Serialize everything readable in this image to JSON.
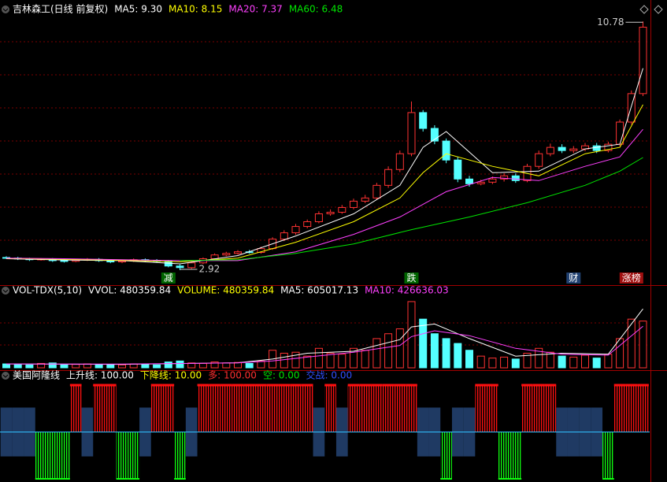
{
  "chart_data": [
    {
      "type": "candlestick",
      "title": "吉林森工(日线 前复权)",
      "legend": [
        {
          "label": "MA5: 9.30",
          "color": "#ffffff"
        },
        {
          "label": "MA10: 8.15",
          "color": "#ffff00"
        },
        {
          "label": "MA20: 7.37",
          "color": "#ff40ff"
        },
        {
          "label": "MA60: 6.48",
          "color": "#00e600"
        }
      ],
      "open": [
        3.32,
        3.3,
        3.28,
        3.25,
        3.27,
        3.22,
        3.2,
        3.24,
        3.26,
        3.22,
        3.18,
        3.21,
        3.25,
        3.23,
        3.2,
        3.05,
        3.0,
        3.15,
        3.28,
        3.4,
        3.45,
        3.5,
        3.48,
        3.6,
        3.9,
        4.1,
        4.3,
        4.45,
        4.7,
        4.75,
        4.9,
        5.1,
        5.2,
        5.6,
        6.1,
        6.6,
        7.9,
        7.4,
        7.0,
        6.4,
        5.8,
        5.65,
        5.7,
        5.8,
        5.9,
        5.75,
        6.2,
        6.6,
        6.8,
        6.7,
        6.75,
        6.85,
        6.7,
        6.9,
        7.6,
        8.5
      ],
      "high": [
        3.36,
        3.34,
        3.31,
        3.3,
        3.3,
        3.26,
        3.28,
        3.3,
        3.3,
        3.26,
        3.25,
        3.29,
        3.29,
        3.27,
        3.24,
        3.1,
        3.19,
        3.32,
        3.45,
        3.5,
        3.55,
        3.56,
        3.66,
        3.96,
        4.18,
        4.38,
        4.52,
        4.78,
        4.84,
        4.98,
        5.18,
        5.3,
        5.68,
        6.2,
        6.7,
        8.25,
        7.98,
        7.5,
        7.08,
        6.5,
        5.9,
        5.78,
        5.88,
        5.98,
        5.98,
        6.28,
        6.7,
        6.92,
        6.9,
        6.84,
        6.94,
        6.94,
        6.98,
        7.68,
        8.6,
        10.78
      ],
      "low": [
        3.27,
        3.24,
        3.21,
        3.22,
        3.18,
        3.16,
        3.17,
        3.21,
        3.18,
        3.14,
        3.14,
        3.18,
        3.19,
        3.16,
        3.01,
        2.92,
        2.96,
        3.11,
        3.24,
        3.36,
        3.41,
        3.44,
        3.44,
        3.56,
        3.84,
        4.04,
        4.24,
        4.4,
        4.64,
        4.7,
        4.84,
        5.04,
        5.14,
        5.52,
        6.02,
        6.52,
        7.3,
        6.9,
        6.3,
        5.7,
        5.56,
        5.6,
        5.64,
        5.72,
        5.68,
        5.7,
        6.12,
        6.52,
        6.62,
        6.62,
        6.68,
        6.62,
        6.64,
        6.84,
        7.52,
        8.42
      ],
      "close": [
        3.3,
        3.28,
        3.25,
        3.27,
        3.22,
        3.2,
        3.24,
        3.26,
        3.22,
        3.18,
        3.21,
        3.25,
        3.23,
        3.2,
        3.05,
        3.0,
        3.15,
        3.28,
        3.4,
        3.45,
        3.5,
        3.48,
        3.6,
        3.9,
        4.1,
        4.3,
        4.45,
        4.7,
        4.75,
        4.9,
        5.1,
        5.2,
        5.6,
        6.1,
        6.6,
        7.9,
        7.4,
        7.0,
        6.4,
        5.8,
        5.65,
        5.7,
        5.8,
        5.9,
        5.75,
        6.2,
        6.6,
        6.8,
        6.7,
        6.75,
        6.85,
        6.7,
        6.9,
        7.6,
        8.5,
        10.6
      ],
      "up_color": "#ff3232",
      "down_color": "#54ffff",
      "ylim": [
        2.87,
        11.11
      ],
      "lines": [
        {
          "color": "#ffffff",
          "x": [
            0,
            5,
            10,
            15,
            20,
            25,
            30,
            34,
            36,
            38,
            42,
            46,
            50,
            53,
            55
          ],
          "values": [
            3.28,
            3.24,
            3.22,
            3.12,
            3.38,
            4.0,
            4.7,
            5.6,
            6.8,
            7.3,
            6.0,
            6.05,
            6.75,
            6.9,
            9.3
          ]
        },
        {
          "color": "#ffff00",
          "x": [
            0,
            5,
            10,
            15,
            20,
            25,
            30,
            34,
            36,
            38,
            42,
            46,
            50,
            53,
            55
          ],
          "values": [
            3.29,
            3.26,
            3.23,
            3.18,
            3.3,
            3.8,
            4.45,
            5.2,
            6.0,
            6.6,
            6.2,
            5.9,
            6.6,
            6.8,
            8.15
          ]
        },
        {
          "color": "#ff40ff",
          "x": [
            0,
            5,
            10,
            15,
            20,
            25,
            30,
            34,
            36,
            38,
            42,
            46,
            50,
            53,
            55
          ],
          "values": [
            3.3,
            3.28,
            3.25,
            3.22,
            3.22,
            3.5,
            4.05,
            4.6,
            5.0,
            5.4,
            5.85,
            5.75,
            6.2,
            6.5,
            7.37
          ]
        },
        {
          "color": "#00e600",
          "x": [
            15,
            20,
            25,
            30,
            35,
            40,
            45,
            50,
            53,
            55
          ],
          "values": [
            3.22,
            3.25,
            3.45,
            3.75,
            4.2,
            4.6,
            5.05,
            5.6,
            6.05,
            6.48
          ]
        }
      ],
      "extreme_labels": [
        {
          "x": 55,
          "label": "10.78"
        },
        {
          "x": 15,
          "label": "2.92"
        }
      ],
      "markers": [
        {
          "x": 14,
          "label": "减",
          "color": "#ffffff",
          "background": "#006400"
        },
        {
          "x": 35,
          "label": "跌",
          "color": "#ffffff",
          "background": "#006400"
        },
        {
          "x": 49,
          "label": "财",
          "color": "#ffffff",
          "background": "#204070"
        },
        {
          "x": 54,
          "label": "涨榜",
          "color": "#ffffff",
          "background": "#a01010"
        }
      ]
    },
    {
      "type": "volume",
      "title": "VOL-TDX(5,10)",
      "legend": [
        {
          "label": "VVOL: 480359.84",
          "color": "#ffffff"
        },
        {
          "label": "VOLUME: 480359.84",
          "color": "#ffff00"
        },
        {
          "label": "MA5: 605017.13",
          "color": "#ffffff"
        },
        {
          "label": "MA10: 426636.03",
          "color": "#ff40ff"
        }
      ],
      "values": [
        40000,
        35000,
        30000,
        45000,
        50000,
        30000,
        35000,
        40000,
        30000,
        35000,
        30000,
        40000,
        35000,
        30000,
        60000,
        70000,
        50000,
        45000,
        60000,
        50000,
        55000,
        45000,
        70000,
        180000,
        150000,
        160000,
        120000,
        200000,
        150000,
        140000,
        200000,
        180000,
        300000,
        350000,
        400000,
        680000,
        500000,
        350000,
        300000,
        250000,
        180000,
        120000,
        100000,
        110000,
        90000,
        150000,
        200000,
        160000,
        120000,
        110000,
        130000,
        100000,
        140000,
        300000,
        500000,
        480359.84
      ],
      "ylim": [
        0,
        720000
      ],
      "lines": [
        {
          "color": "#ffffff",
          "x": [
            0,
            10,
            20,
            23,
            26,
            30,
            34,
            35,
            37,
            40,
            44,
            48,
            52,
            55
          ],
          "values": [
            40000,
            36000,
            52000,
            90000,
            150000,
            170000,
            290000,
            420000,
            450000,
            300000,
            120000,
            150000,
            140000,
            605017.13
          ]
        },
        {
          "color": "#ff40ff",
          "x": [
            0,
            10,
            20,
            23,
            26,
            30,
            34,
            35,
            37,
            40,
            44,
            48,
            52,
            55
          ],
          "values": [
            40000,
            38000,
            50000,
            70000,
            110000,
            160000,
            230000,
            320000,
            380000,
            330000,
            200000,
            140000,
            130000,
            426636.03
          ]
        }
      ]
    },
    {
      "type": "indicator",
      "title": "美国阿隆线",
      "legend": [
        {
          "label": "上升线: 100.00",
          "color": "#ffffff"
        },
        {
          "label": "下降线: 10.00",
          "color": "#ffff00"
        },
        {
          "label": "多: 100.00",
          "color": "#ff3030"
        },
        {
          "label": "空: 0.00",
          "color": "#00e600"
        },
        {
          "label": "交战: 0.00",
          "color": "#3050ff"
        }
      ],
      "ylim": [
        -100,
        100
      ],
      "series": [
        {
          "color": "#ff1010",
          "direction": "up",
          "values": [
            0,
            0,
            0,
            0,
            0,
            0,
            100,
            0,
            100,
            100,
            0,
            0,
            0,
            100,
            100,
            0,
            0,
            100,
            100,
            100,
            100,
            100,
            100,
            100,
            100,
            100,
            100,
            0,
            100,
            0,
            100,
            100,
            100,
            100,
            100,
            100,
            0,
            0,
            0,
            0,
            0,
            100,
            100,
            0,
            0,
            100,
            100,
            100,
            0,
            0,
            0,
            0,
            0,
            100,
            100,
            100
          ]
        },
        {
          "color": "#10ff10",
          "direction": "down",
          "values": [
            0,
            0,
            0,
            100,
            100,
            100,
            0,
            0,
            0,
            0,
            100,
            100,
            0,
            0,
            0,
            100,
            0,
            0,
            0,
            0,
            0,
            0,
            0,
            0,
            0,
            0,
            0,
            0,
            0,
            0,
            0,
            0,
            0,
            0,
            0,
            0,
            0,
            0,
            100,
            0,
            0,
            0,
            0,
            100,
            100,
            0,
            0,
            0,
            0,
            0,
            0,
            0,
            100,
            0,
            0,
            0
          ]
        },
        {
          "color": "#1f3a63",
          "direction": "band",
          "values": [
            100,
            100,
            100,
            0,
            0,
            0,
            0,
            100,
            0,
            0,
            0,
            0,
            100,
            0,
            0,
            0,
            100,
            0,
            0,
            0,
            0,
            0,
            0,
            0,
            0,
            0,
            0,
            100,
            0,
            100,
            0,
            0,
            0,
            0,
            0,
            0,
            100,
            100,
            0,
            100,
            100,
            0,
            0,
            0,
            0,
            0,
            0,
            0,
            100,
            100,
            100,
            100,
            0,
            0,
            0,
            0
          ]
        }
      ]
    }
  ]
}
